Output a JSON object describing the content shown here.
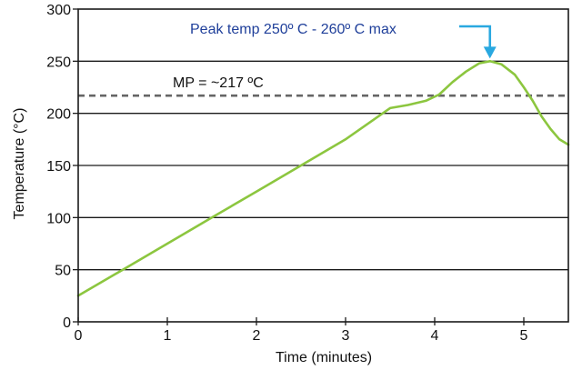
{
  "chart_data": {
    "type": "line",
    "title": "",
    "xlabel": "Time (minutes)",
    "ylabel": "Temperature (°C)",
    "xlim": [
      0,
      5.5
    ],
    "ylim": [
      0,
      300
    ],
    "x_ticks": [
      0,
      1,
      2,
      3,
      4,
      5
    ],
    "x_tick_labels": [
      "0",
      "1",
      "2",
      "3",
      "4",
      "5"
    ],
    "y_ticks": [
      0,
      50,
      100,
      150,
      200,
      250,
      300
    ],
    "y_tick_labels": [
      "0",
      "50",
      "100",
      "150",
      "200",
      "250",
      "300"
    ],
    "grid": "horizontal",
    "legend": "none",
    "series": [
      {
        "color": "#8cc63f",
        "x": [
          0,
          0.5,
          1,
          1.5,
          2,
          2.5,
          3,
          3.3,
          3.5,
          3.7,
          3.9,
          4.05,
          4.2,
          4.35,
          4.5,
          4.62,
          4.75,
          4.9,
          5.0,
          5.1,
          5.2,
          5.3,
          5.4,
          5.5
        ],
        "y": [
          25,
          50,
          75,
          100,
          125,
          150,
          175,
          193,
          205,
          208,
          212,
          218,
          230,
          240,
          248,
          250,
          247,
          237,
          225,
          212,
          197,
          185,
          175,
          170
        ]
      }
    ],
    "reference_lines": [
      {
        "y": 217,
        "style": "dashed",
        "color": "#666666",
        "label": "MP = ~217 ºC"
      }
    ],
    "annotations": [
      {
        "text": "Peak temp 250º C - 260º C max",
        "color": "#1f3f9a",
        "arrow_color": "#29a8e0",
        "points_to": {
          "x": 4.62,
          "y": 250
        }
      }
    ]
  }
}
